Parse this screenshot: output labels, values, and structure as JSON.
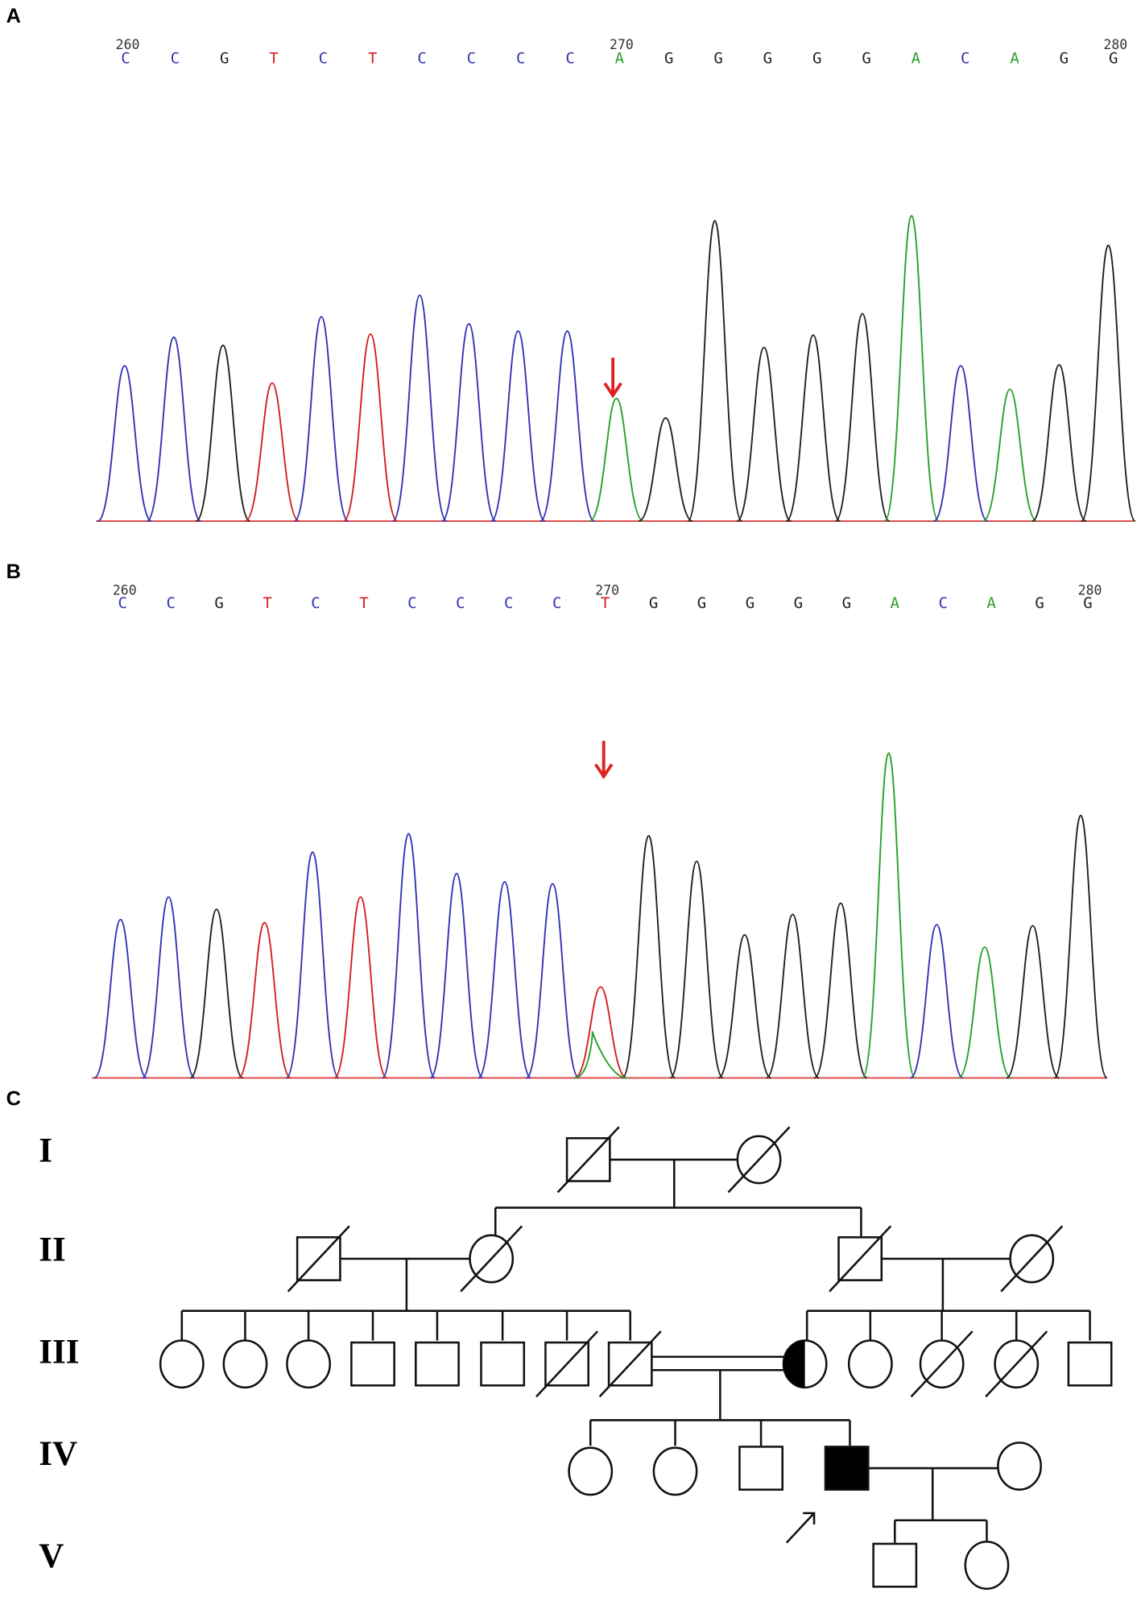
{
  "panels": [
    {
      "label": "A",
      "positions": [
        260,
        270,
        280
      ],
      "bases": [
        "C",
        "C",
        "G",
        "T",
        "C",
        "T",
        "C",
        "C",
        "C",
        "C",
        "A",
        "G",
        "G",
        "G",
        "G",
        "G",
        "A",
        "C",
        "A",
        "G",
        "G"
      ]
    },
    {
      "label": "B",
      "positions": [
        260,
        270,
        280
      ],
      "bases": [
        "C",
        "C",
        "G",
        "T",
        "C",
        "T",
        "C",
        "C",
        "C",
        "C",
        "T",
        "G",
        "G",
        "G",
        "G",
        "G",
        "A",
        "C",
        "A",
        "G",
        "G"
      ]
    },
    {
      "label": "C",
      "generations": [
        "I",
        "II",
        "III",
        "IV",
        "V"
      ]
    }
  ]
}
